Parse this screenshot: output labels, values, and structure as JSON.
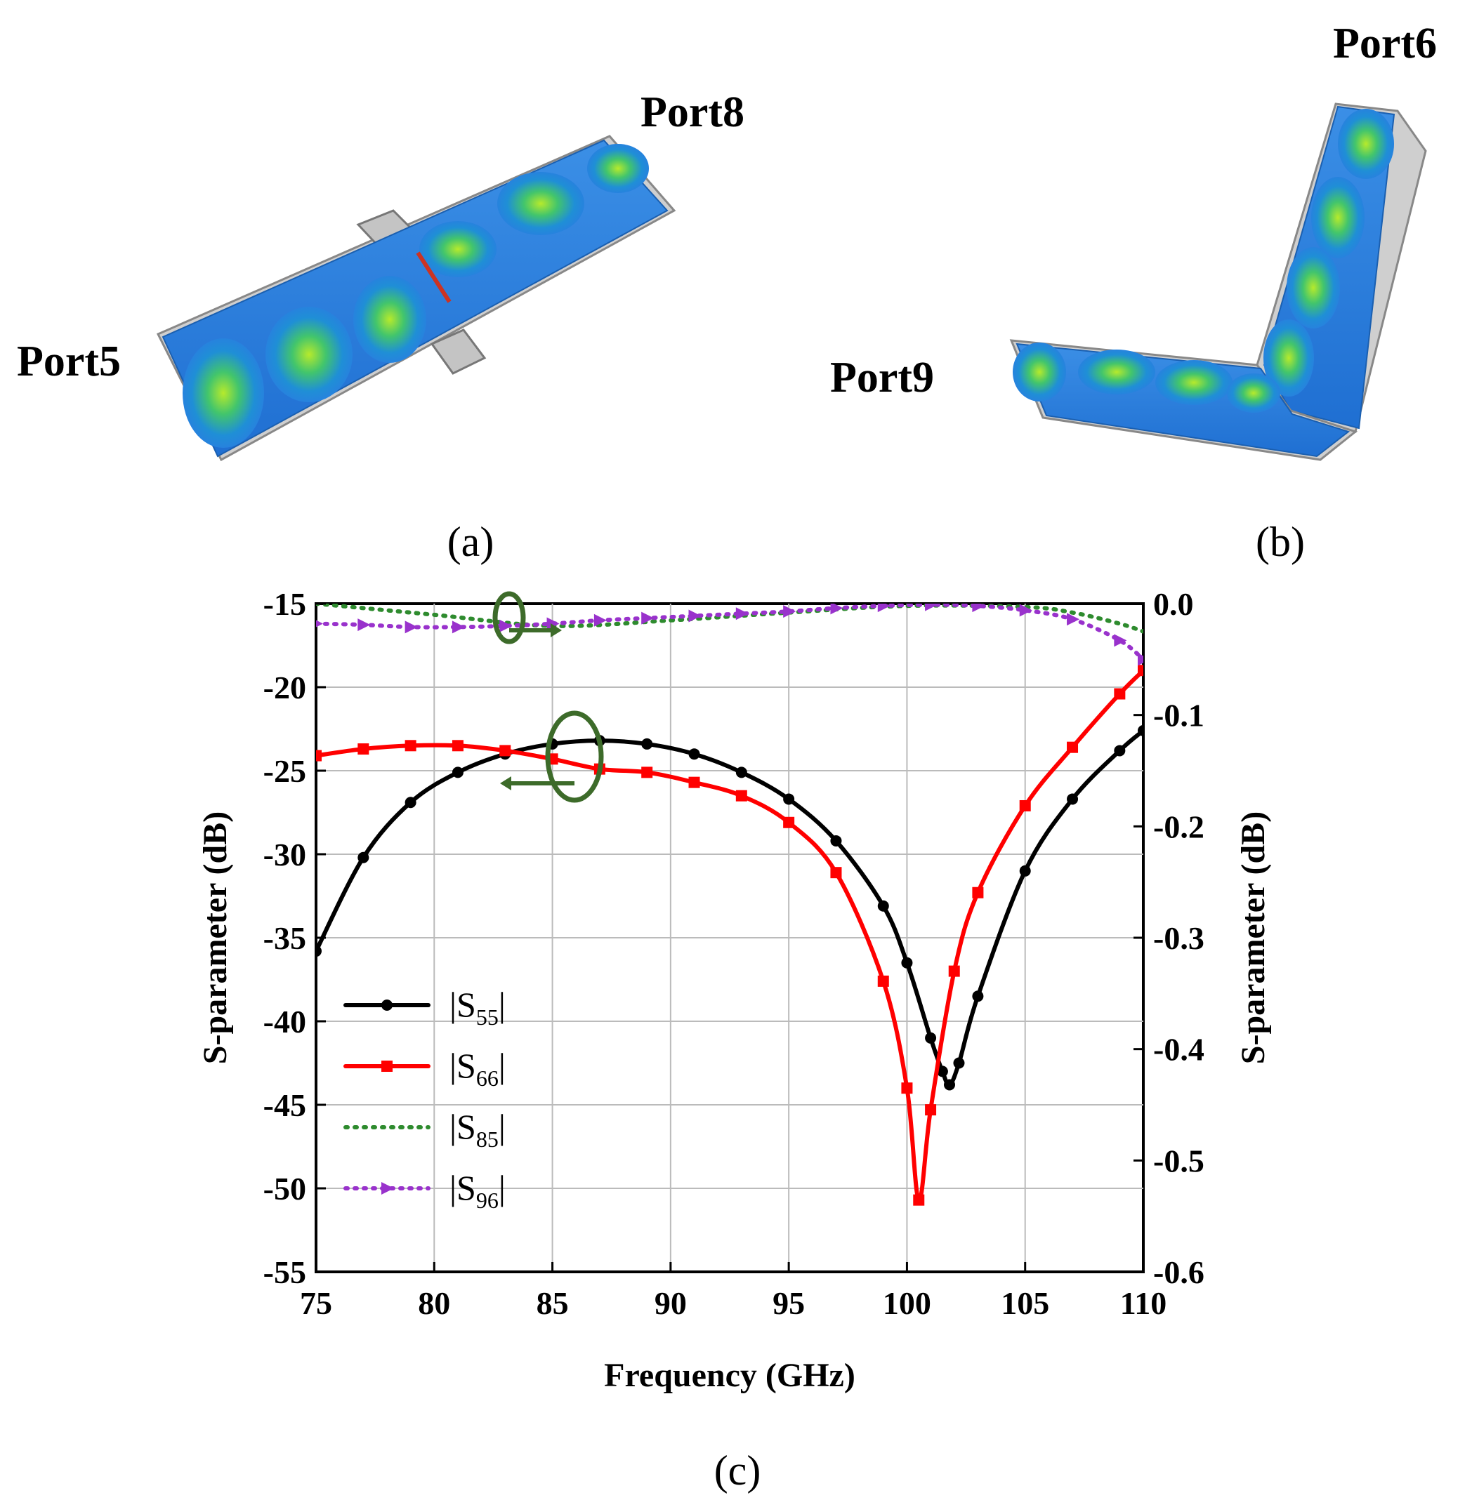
{
  "panels": {
    "a": {
      "caption": "(a)",
      "ports": {
        "left": "Port5",
        "right": "Port8"
      }
    },
    "b": {
      "caption": "(b)",
      "ports": {
        "left": "Port9",
        "top": "Port6"
      }
    },
    "c": {
      "caption": "(c)"
    }
  },
  "colors": {
    "field_low": "#2a7de1",
    "field_mid": "#39c47a",
    "field_high": "#9be03a",
    "housing": "#c8c8c8",
    "annotation": "#3d6b2a"
  },
  "chart_data": {
    "type": "line",
    "xlabel": "Frequency (GHz)",
    "ylabel_left": "S-parameter (dB)",
    "ylabel_right": "S-parameter (dB)",
    "xlim": [
      75,
      110
    ],
    "ylim_left": [
      -55,
      -15
    ],
    "ylim_right": [
      -0.6,
      0.0
    ],
    "x_ticks": [
      "75",
      "80",
      "85",
      "90",
      "95",
      "100",
      "105",
      "110"
    ],
    "y_ticks_left": [
      "-15",
      "-20",
      "-25",
      "-30",
      "-35",
      "-40",
      "-45",
      "-50",
      "-55"
    ],
    "y_ticks_right": [
      "0.0",
      "-0.1",
      "-0.2",
      "-0.3",
      "-0.4",
      "-0.5",
      "-0.6"
    ],
    "grid": true,
    "legend": "lower-left",
    "series": [
      {
        "name": "|S55|",
        "label_main": "|S",
        "label_sub": "55",
        "label_end": "|",
        "axis": "left",
        "color": "#000000",
        "style": "solid",
        "marker": "circle",
        "x": [
          75,
          77,
          79,
          81,
          83,
          85,
          87,
          89,
          91,
          93,
          95,
          97,
          99,
          100,
          101,
          101.5,
          101.8,
          102.2,
          103,
          105,
          107,
          109,
          110
        ],
        "y": [
          -35.8,
          -30.2,
          -26.9,
          -25.1,
          -24.0,
          -23.4,
          -23.2,
          -23.4,
          -24.0,
          -25.1,
          -26.7,
          -29.2,
          -33.1,
          -36.5,
          -41.0,
          -43.0,
          -43.8,
          -42.5,
          -38.5,
          -31.0,
          -26.7,
          -23.8,
          -22.6
        ]
      },
      {
        "name": "|S66|",
        "label_main": "|S",
        "label_sub": "66",
        "label_end": "|",
        "axis": "left",
        "color": "#ff0000",
        "style": "solid",
        "marker": "square",
        "x": [
          75,
          77,
          79,
          81,
          83,
          85,
          87,
          89,
          91,
          93,
          95,
          97,
          99,
          100,
          100.5,
          101,
          102,
          103,
          105,
          107,
          109,
          110
        ],
        "y": [
          -24.1,
          -23.7,
          -23.5,
          -23.5,
          -23.8,
          -24.3,
          -24.9,
          -25.1,
          -25.7,
          -26.5,
          -28.1,
          -31.1,
          -37.6,
          -44.0,
          -50.7,
          -45.3,
          -37.0,
          -32.3,
          -27.1,
          -23.6,
          -20.4,
          -19.0
        ]
      },
      {
        "name": "|S85|",
        "label_main": "|S",
        "label_sub": "85",
        "label_end": "|",
        "axis": "right",
        "color": "#2e8b2e",
        "style": "dotted",
        "marker": "none",
        "x": [
          75,
          80,
          85,
          90,
          95,
          100,
          105,
          107,
          109,
          110
        ],
        "y": [
          0.0,
          -0.01,
          -0.02,
          -0.015,
          -0.008,
          -0.002,
          -0.003,
          -0.008,
          -0.018,
          -0.025
        ]
      },
      {
        "name": "|S96|",
        "label_main": "|S",
        "label_sub": "96",
        "label_end": "|",
        "axis": "right",
        "color": "#9932cc",
        "style": "dotted",
        "marker": "triangle-right",
        "x": [
          75,
          77,
          79,
          81,
          83,
          85,
          87,
          89,
          91,
          93,
          95,
          97,
          99,
          101,
          103,
          105,
          107,
          109,
          110
        ],
        "y": [
          -0.018,
          -0.019,
          -0.021,
          -0.021,
          -0.02,
          -0.018,
          -0.015,
          -0.013,
          -0.011,
          -0.009,
          -0.007,
          -0.004,
          -0.002,
          -0.001,
          -0.002,
          -0.006,
          -0.014,
          -0.033,
          -0.05
        ]
      }
    ]
  }
}
